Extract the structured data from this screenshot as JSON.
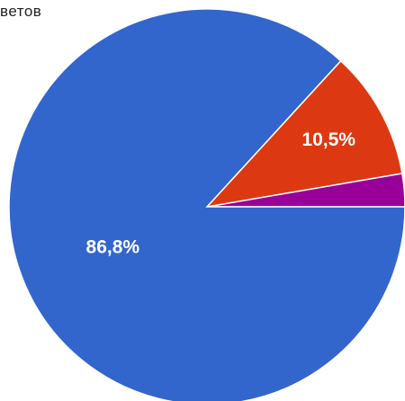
{
  "header": {
    "text": "ветов"
  },
  "chart_data": {
    "type": "pie",
    "start_angle_deg": 0,
    "direction": "counterclockwise",
    "slices": [
      {
        "value": 86.8,
        "label": "86,8%",
        "color": "#3366cc",
        "show_label": true
      },
      {
        "value": 10.5,
        "label": "10,5%",
        "color": "#dc3912",
        "show_label": true
      },
      {
        "value": 2.7,
        "label": "",
        "color": "#990099",
        "show_label": false
      }
    ]
  }
}
